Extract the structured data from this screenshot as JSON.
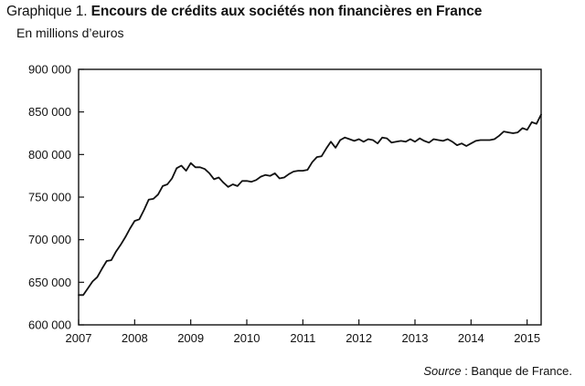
{
  "header": {
    "prefix": "Graphique 1.",
    "title": "Encours de crédits aux sociétés non financières en France",
    "subtitle": "En millions d’euros"
  },
  "footer": {
    "source_label": "Source",
    "source_separator": " : ",
    "source_text": "Banque de France."
  },
  "colors": {
    "line": "#111111",
    "axis": "#111111",
    "background": "#ffffff"
  },
  "chart_data": {
    "type": "line",
    "title": "Encours de crédits aux sociétés non financières en France",
    "subtitle": "En millions d’euros",
    "xlabel": "",
    "ylabel": "",
    "grid": false,
    "legend": "none",
    "xlim": [
      2007,
      2015.25
    ],
    "ylim": [
      600000,
      900000
    ],
    "x_ticks": [
      2007,
      2008,
      2009,
      2010,
      2011,
      2012,
      2013,
      2014,
      2015
    ],
    "x_tick_labels": [
      "2007",
      "2008",
      "2009",
      "2010",
      "2011",
      "2012",
      "2013",
      "2014",
      "2015"
    ],
    "y_ticks": [
      600000,
      650000,
      700000,
      750000,
      800000,
      850000,
      900000
    ],
    "y_tick_labels": [
      "600 000",
      "650 000",
      "700 000",
      "750 000",
      "800 000",
      "850 000",
      "900 000"
    ],
    "series": [
      {
        "x": [
          2007.0,
          2007.083,
          2007.167,
          2007.25,
          2007.333,
          2007.417,
          2007.5,
          2007.583,
          2007.667,
          2007.75,
          2007.833,
          2007.917,
          2008.0,
          2008.083,
          2008.167,
          2008.25,
          2008.333,
          2008.417,
          2008.5,
          2008.583,
          2008.667,
          2008.75,
          2008.833,
          2008.917,
          2009.0,
          2009.083,
          2009.167,
          2009.25,
          2009.333,
          2009.417,
          2009.5,
          2009.583,
          2009.667,
          2009.75,
          2009.833,
          2009.917,
          2010.0,
          2010.083,
          2010.167,
          2010.25,
          2010.333,
          2010.417,
          2010.5,
          2010.583,
          2010.667,
          2010.75,
          2010.833,
          2010.917,
          2011.0,
          2011.083,
          2011.167,
          2011.25,
          2011.333,
          2011.417,
          2011.5,
          2011.583,
          2011.667,
          2011.75,
          2011.833,
          2011.917,
          2012.0,
          2012.083,
          2012.167,
          2012.25,
          2012.333,
          2012.417,
          2012.5,
          2012.583,
          2012.667,
          2012.75,
          2012.833,
          2012.917,
          2013.0,
          2013.083,
          2013.167,
          2013.25,
          2013.333,
          2013.417,
          2013.5,
          2013.583,
          2013.667,
          2013.75,
          2013.833,
          2013.917,
          2014.0,
          2014.083,
          2014.167,
          2014.25,
          2014.333,
          2014.417,
          2014.5,
          2014.583,
          2014.667,
          2014.75,
          2014.833,
          2014.917,
          2015.0,
          2015.083,
          2015.167,
          2015.25
        ],
        "y": [
          635000,
          635000,
          643000,
          651000,
          656000,
          666000,
          675000,
          676000,
          686000,
          694000,
          703000,
          713000,
          722000,
          724000,
          735000,
          747000,
          748000,
          753000,
          763000,
          765000,
          772000,
          784000,
          787000,
          781000,
          790000,
          785000,
          785000,
          783000,
          778000,
          771000,
          773000,
          767000,
          762000,
          765000,
          763000,
          769000,
          769000,
          768000,
          770000,
          774000,
          776000,
          775000,
          778000,
          772000,
          773000,
          777000,
          780000,
          781000,
          781000,
          782000,
          791000,
          797000,
          798000,
          807000,
          815000,
          808000,
          817000,
          820000,
          818000,
          816000,
          818000,
          815000,
          818000,
          817000,
          813000,
          820000,
          819000,
          814000,
          815000,
          816000,
          815000,
          818000,
          815000,
          819000,
          816000,
          814000,
          818000,
          817000,
          816000,
          818000,
          815000,
          811000,
          813000,
          810000,
          813000,
          816000,
          817000,
          817000,
          817000,
          818000,
          822000,
          827000,
          826000,
          825000,
          826000,
          831000,
          829000,
          838000,
          836000,
          847000
        ]
      }
    ]
  }
}
